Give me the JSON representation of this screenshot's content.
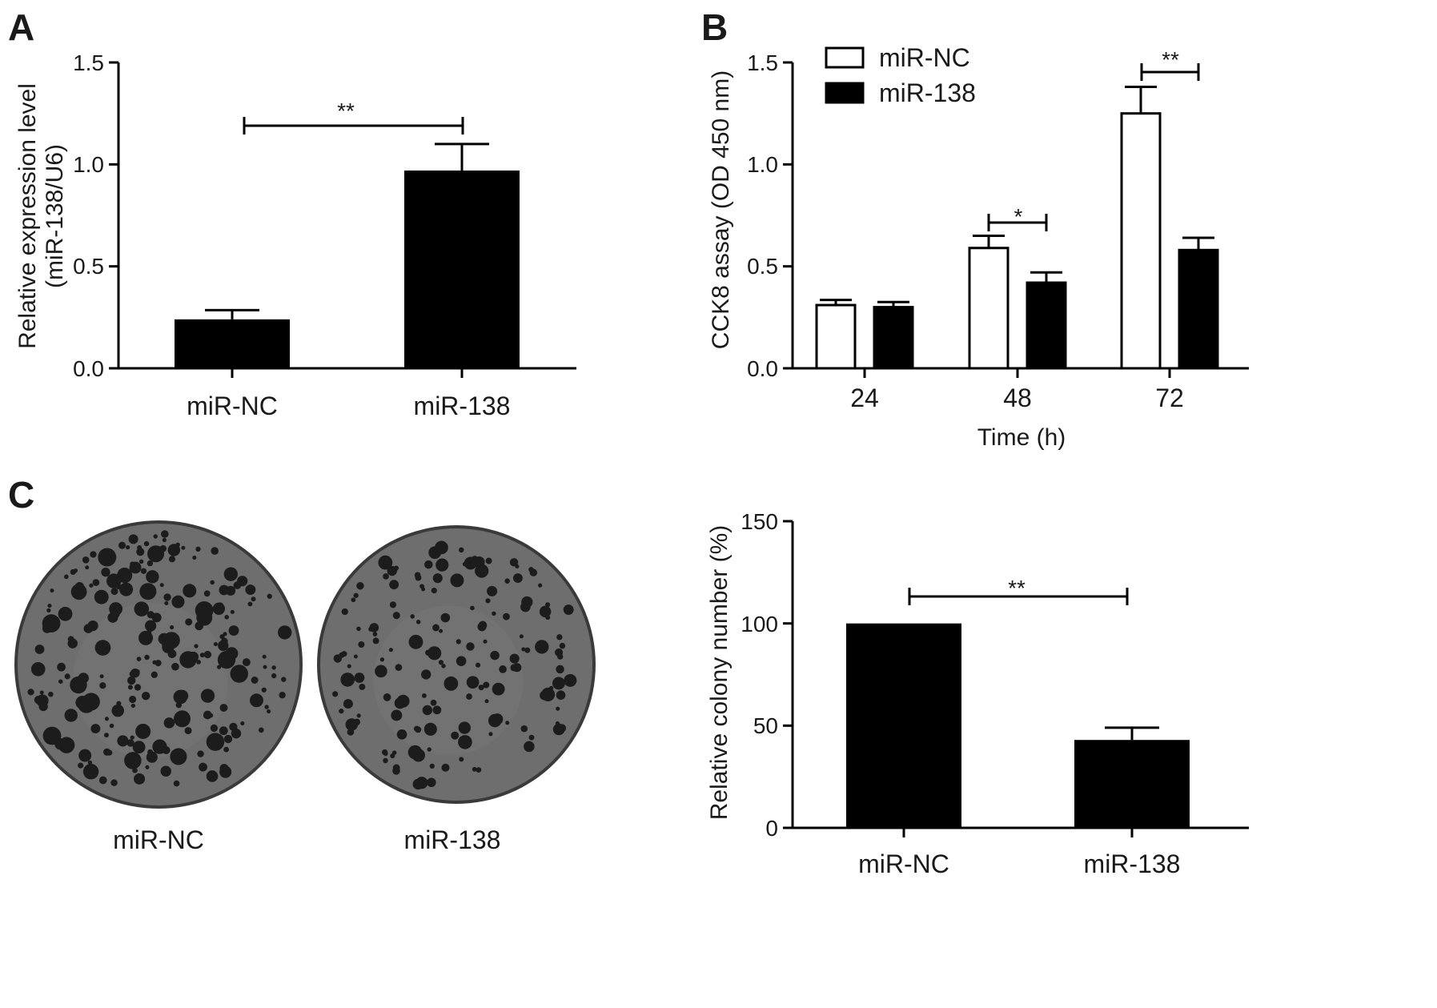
{
  "chart_data": [
    {
      "panel": "A",
      "type": "bar",
      "categories": [
        "miR-NC",
        "miR-138"
      ],
      "values": [
        0.24,
        0.97
      ],
      "errors": [
        0.045,
        0.13
      ],
      "ylabel_lines": [
        "Relative expression level",
        "(miR-138/U6)"
      ],
      "ylim": [
        0,
        1.5
      ],
      "yticks": [
        "0.0",
        "0.5",
        "1.0",
        "1.5"
      ],
      "bar_color": "#000000",
      "significance": [
        {
          "from": 0,
          "to": 1,
          "label": "**"
        }
      ]
    },
    {
      "panel": "B",
      "type": "bar",
      "categories": [
        "24",
        "48",
        "72"
      ],
      "xlabel": "Time (h)",
      "ylabel": "CCK8 assay (OD 450 nm)",
      "ylim": [
        0,
        1.5
      ],
      "yticks": [
        "0.0",
        "0.5",
        "1.0",
        "1.5"
      ],
      "legend": "top-left",
      "series": [
        {
          "name": "miR-NC",
          "values": [
            0.31,
            0.59,
            1.25
          ],
          "errors": [
            0.025,
            0.06,
            0.13
          ],
          "color": "#ffffff"
        },
        {
          "name": "miR-138",
          "values": [
            0.3,
            0.42,
            0.58
          ],
          "errors": [
            0.025,
            0.05,
            0.06
          ],
          "color": "#000000"
        }
      ],
      "significance": [
        {
          "category": 1,
          "label": "*"
        },
        {
          "category": 2,
          "label": "**"
        }
      ]
    },
    {
      "panel": "C",
      "type": "bar",
      "categories": [
        "miR-NC",
        "miR-138"
      ],
      "values": [
        100,
        43
      ],
      "errors": [
        0,
        6
      ],
      "ylabel": "Relative colony number  (%)",
      "ylim": [
        0,
        150
      ],
      "yticks": [
        "0",
        "50",
        "100",
        "150"
      ],
      "bar_color": "#000000",
      "significance": [
        {
          "from": 0,
          "to": 1,
          "label": "**"
        }
      ]
    }
  ],
  "panel_labels": [
    "A",
    "B",
    "C"
  ],
  "plates": {
    "labels": [
      "miR-NC",
      "miR-138"
    ],
    "plate_color": "#6e6e6e",
    "colony_color": "#1c1c1c"
  }
}
